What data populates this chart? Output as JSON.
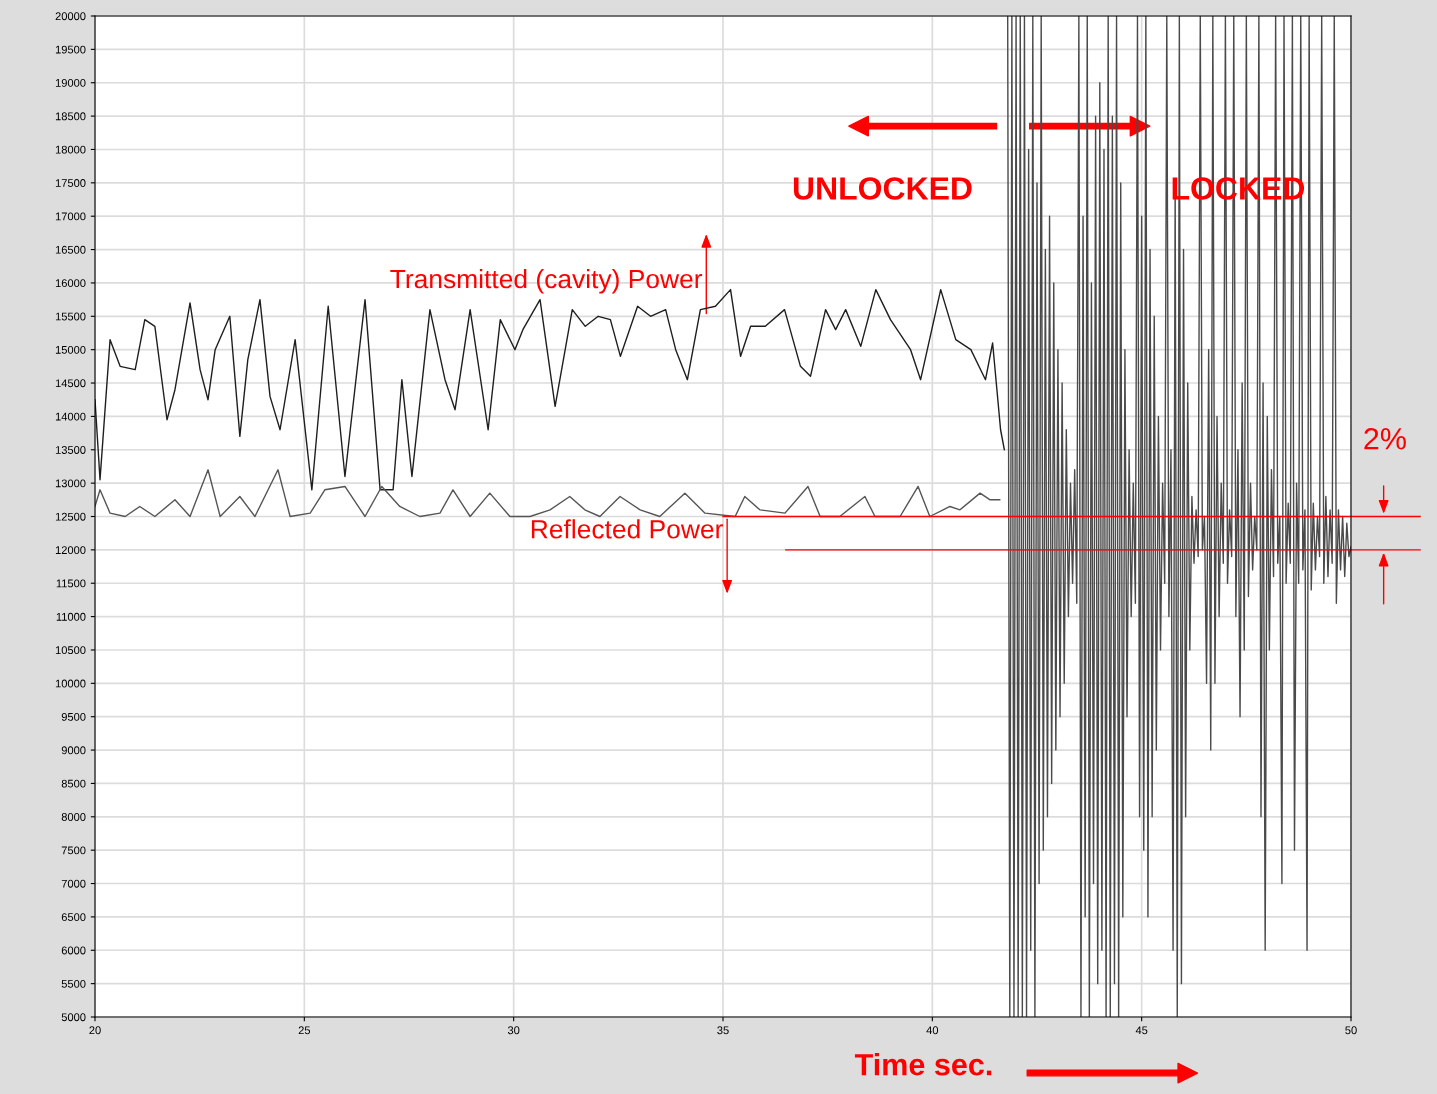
{
  "chart_data": {
    "type": "line",
    "xlabel": "Time sec.",
    "xlim": [
      20,
      50
    ],
    "xticks": [
      20,
      25,
      30,
      35,
      40,
      45,
      50
    ],
    "ylim": [
      5000,
      20000
    ],
    "yticks": [
      5000,
      5500,
      6000,
      6500,
      7000,
      7500,
      8000,
      8500,
      9000,
      9500,
      10000,
      10500,
      11000,
      11500,
      12000,
      12500,
      13000,
      13500,
      14000,
      14500,
      15000,
      15500,
      16000,
      16500,
      17000,
      17500,
      18000,
      18500,
      19000,
      19500,
      20000
    ],
    "grid": true,
    "marker": "none",
    "line_style": "solid",
    "series": [
      {
        "color": "#1e1e1e",
        "x": [
          20.0,
          20.12,
          20.36,
          20.6,
          20.96,
          21.19,
          21.43,
          21.72,
          21.91,
          22.27,
          22.51,
          22.7,
          22.87,
          23.22,
          23.46,
          23.65,
          23.94,
          24.18,
          24.42,
          24.78,
          25.02,
          25.18,
          25.57,
          25.97,
          26.45,
          26.81,
          27.12,
          27.33,
          27.57,
          28.0,
          28.36,
          28.6,
          28.96,
          29.39,
          29.68,
          30.03,
          30.22,
          30.63,
          30.99,
          31.4,
          31.71,
          32.02,
          32.31,
          32.55,
          32.96,
          33.27,
          33.63,
          33.87,
          34.15,
          34.46,
          34.82,
          35.18,
          35.42,
          35.66,
          36.01,
          36.47,
          36.85,
          37.09,
          37.45,
          37.69,
          37.93,
          38.29,
          38.65,
          39.0,
          39.48,
          39.72,
          40.2,
          40.56,
          40.92,
          41.27,
          41.44,
          41.63,
          41.72
        ],
        "values": [
          14250,
          13050,
          15150,
          14750,
          14700,
          15450,
          15350,
          13950,
          14400,
          15700,
          14700,
          14250,
          15000,
          15500,
          13700,
          14850,
          15750,
          14300,
          13800,
          15150,
          13800,
          12900,
          15650,
          13100,
          15750,
          12900,
          12900,
          14550,
          13100,
          15600,
          14550,
          14100,
          15600,
          13800,
          15450,
          15000,
          15300,
          15750,
          14150,
          15600,
          15350,
          15500,
          15450,
          14900,
          15650,
          15500,
          15600,
          15000,
          14550,
          15600,
          15650,
          15900,
          14900,
          15350,
          15350,
          15600,
          14750,
          14600,
          15600,
          15300,
          15600,
          15050,
          15900,
          15450,
          15000,
          14550,
          15900,
          15150,
          15000,
          14550,
          15100,
          13800,
          13500
        ]
      },
      {
        "color": "#555555",
        "x": [
          20.0,
          20.12,
          20.36,
          20.72,
          21.07,
          21.43,
          21.91,
          22.27,
          22.7,
          22.99,
          23.46,
          23.82,
          24.37,
          24.66,
          25.14,
          25.49,
          25.97,
          26.45,
          26.85,
          27.28,
          27.76,
          28.24,
          28.55,
          28.96,
          29.43,
          29.91,
          30.39,
          30.87,
          31.34,
          31.7,
          32.06,
          32.54,
          33.02,
          33.49,
          34.09,
          34.57,
          35.29,
          35.52,
          35.88,
          36.48,
          37.03,
          37.32,
          37.79,
          38.39,
          38.63,
          39.23,
          39.66,
          39.94,
          40.42,
          40.66,
          41.14,
          41.38,
          41.61
        ],
        "values": [
          12650,
          12900,
          12550,
          12500,
          12650,
          12500,
          12750,
          12500,
          13200,
          12500,
          12800,
          12500,
          13200,
          12500,
          12550,
          12900,
          12950,
          12500,
          12950,
          12650,
          12500,
          12550,
          12900,
          12500,
          12850,
          12500,
          12500,
          12600,
          12800,
          12600,
          12500,
          12800,
          12600,
          12500,
          12850,
          12550,
          12500,
          12800,
          12600,
          12550,
          12950,
          12500,
          12500,
          12800,
          12500,
          12500,
          12950,
          12500,
          12650,
          12600,
          12850,
          12750,
          12750
        ]
      },
      {
        "color": "#4a4a4a",
        "x": [
          41.8,
          41.85,
          41.9,
          41.95,
          42.0,
          42.05,
          42.1,
          42.15,
          42.2,
          42.25,
          42.3,
          42.35,
          42.4,
          42.45,
          42.5,
          42.55,
          42.6,
          42.65,
          42.7,
          42.75,
          42.8,
          42.85,
          42.9,
          42.95,
          43.0,
          43.05,
          43.1,
          43.15,
          43.2,
          43.25,
          43.3,
          43.35,
          43.4,
          43.45,
          43.5,
          43.55,
          43.6,
          43.65,
          43.7,
          43.75,
          43.8,
          43.85,
          43.9,
          43.95,
          44.0,
          44.05,
          44.1,
          44.15,
          44.2,
          44.25,
          44.3,
          44.35,
          44.4,
          44.45,
          44.5,
          44.55,
          44.6,
          44.65,
          44.7,
          44.75,
          44.8,
          44.85,
          44.9,
          44.95,
          45.0,
          45.05,
          45.1,
          45.15,
          45.2,
          45.25,
          45.3,
          45.35,
          45.4,
          45.45,
          45.5,
          45.55,
          45.6,
          45.65,
          45.7,
          45.75,
          45.8,
          45.85,
          45.9,
          45.95,
          46.0,
          46.05,
          46.1,
          46.15,
          46.2,
          46.25,
          46.3,
          46.35,
          46.4,
          46.45,
          46.5,
          46.55,
          46.6,
          46.65,
          46.7,
          46.75,
          46.8,
          46.85,
          46.9,
          46.95,
          47.0,
          47.05,
          47.1,
          47.15,
          47.2,
          47.25,
          47.3,
          47.35,
          47.4,
          47.45,
          47.5,
          47.55,
          47.6,
          47.65,
          47.7,
          47.75,
          47.8,
          47.85,
          47.9,
          47.95,
          48.0,
          48.05,
          48.1,
          48.15,
          48.2,
          48.25,
          48.3,
          48.35,
          48.4,
          48.45,
          48.5,
          48.55,
          48.6,
          48.65,
          48.7,
          48.75,
          48.8,
          48.85,
          48.9,
          48.95,
          49.0,
          49.05,
          49.1,
          49.15,
          49.2,
          49.25,
          49.3,
          49.35,
          49.4,
          49.45,
          49.5,
          49.55,
          49.6,
          49.65,
          49.7,
          49.75,
          49.8,
          49.85,
          49.9,
          49.95,
          50.0
        ],
        "values": [
          20000,
          5000,
          20000,
          5000,
          20000,
          5000,
          20000,
          5000,
          20000,
          5000,
          18000,
          6000,
          20000,
          5000,
          17500,
          7000,
          20000,
          7500,
          16500,
          8000,
          17000,
          8500,
          16000,
          9000,
          15000,
          9500,
          14500,
          10000,
          13800,
          11000,
          13000,
          11500,
          13200,
          11200,
          20000,
          5000,
          17000,
          6500,
          20000,
          5000,
          16000,
          7000,
          18500,
          5500,
          19000,
          6000,
          18000,
          5000,
          20000,
          5000,
          18500,
          5500,
          20000,
          5000,
          17500,
          6500,
          15000,
          9500,
          13500,
          11000,
          13000,
          11200,
          20000,
          8000,
          17000,
          7500,
          20000,
          6500,
          16500,
          8000,
          15500,
          9000,
          14000,
          10500,
          13000,
          11500,
          20000,
          11000,
          13500,
          6000,
          17500,
          5000,
          20000,
          5500,
          16500,
          8000,
          14500,
          10500,
          12800,
          11800,
          12600,
          11900,
          20000,
          12000,
          12500,
          10000,
          15000,
          9000,
          20000,
          10000,
          14000,
          11000,
          13000,
          11800,
          20000,
          11500,
          12600,
          11900,
          20000,
          11000,
          13500,
          9500,
          14500,
          10500,
          20000,
          11300,
          13000,
          11700,
          12500,
          12000,
          20000,
          8000,
          14500,
          6000,
          14000,
          10500,
          13200,
          11600,
          20000,
          11800,
          12500,
          7000,
          20000,
          11500,
          12700,
          11800,
          20000,
          7500,
          13000,
          11500,
          20000,
          11700,
          12600,
          6000,
          20000,
          11400,
          12700,
          11700,
          12500,
          11900,
          20000,
          11500,
          12800,
          11600,
          12600,
          11800,
          20000,
          11200,
          12600,
          11700,
          12500,
          11600,
          12400,
          11900,
          12050
        ]
      }
    ],
    "ref_lines": [
      {
        "axis": "y",
        "value": 12500,
        "color": "#ff0000"
      },
      {
        "axis": "y",
        "value": 12000,
        "color": "#ff0000"
      }
    ],
    "annotations": [
      "UNLOCKED",
      "LOCKED",
      "Transmitted (cavity) Power",
      "Reflected Power",
      "2%"
    ]
  }
}
